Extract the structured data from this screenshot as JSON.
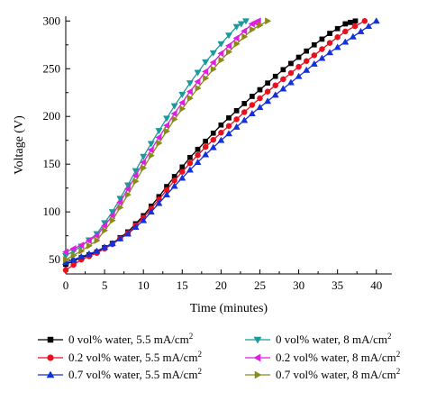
{
  "chart_data": {
    "type": "line",
    "title": "",
    "xlabel": "Time (minutes)",
    "ylabel": "Voltage (V)",
    "xlim": [
      0,
      42
    ],
    "ylim": [
      35,
      305
    ],
    "xticks": [
      0,
      5,
      10,
      15,
      20,
      25,
      30,
      35,
      40
    ],
    "yticks": [
      50,
      100,
      150,
      200,
      250,
      300
    ],
    "grid": false,
    "legend_placement": "bottom",
    "series": [
      {
        "name": "0 vol% water, 5.5 mA/cm",
        "name_sup": "2",
        "color": "#000000",
        "marker": "square",
        "x": [
          0,
          2,
          4,
          6,
          8,
          10,
          12,
          14,
          16,
          18,
          20,
          22,
          24,
          26,
          28,
          30,
          32,
          34,
          36,
          37.3
        ],
        "y": [
          45,
          52,
          58,
          67,
          79,
          96,
          116,
          137,
          157,
          174,
          191,
          206,
          221,
          235,
          249,
          262,
          275,
          287,
          297,
          300
        ]
      },
      {
        "name": "0.2 vol% water, 5.5 mA/cm",
        "name_sup": "2",
        "color": "#e8101e",
        "marker": "circle",
        "x": [
          0,
          2,
          4,
          6,
          8,
          10,
          12,
          14,
          16,
          18,
          20,
          22,
          24,
          26,
          28,
          30,
          32,
          34,
          36,
          38.5
        ],
        "y": [
          39,
          50,
          57,
          66,
          78,
          94,
          113,
          133,
          151,
          168,
          183,
          197,
          212,
          226,
          239,
          252,
          264,
          277,
          289,
          300
        ]
      },
      {
        "name": "0.7 vol% water, 5.5 mA/cm",
        "name_sup": "2",
        "color": "#1530d8",
        "marker": "triangle-up",
        "x": [
          0,
          2,
          4,
          6,
          8,
          10,
          12,
          14,
          16,
          18,
          20,
          22,
          24,
          26,
          28,
          30,
          32,
          34,
          36,
          38,
          40
        ],
        "y": [
          47,
          53,
          59,
          67,
          77,
          91,
          109,
          127,
          144,
          160,
          175,
          189,
          203,
          216,
          229,
          242,
          255,
          267,
          278,
          289,
          300
        ]
      },
      {
        "name": "0 vol% water, 8 mA/cm",
        "name_sup": "2",
        "color": "#1a9a9a",
        "marker": "triangle-down",
        "x": [
          0,
          2,
          4,
          6,
          8,
          10,
          12,
          14,
          16,
          18,
          20,
          22,
          23.2
        ],
        "y": [
          54,
          64,
          77,
          100,
          128,
          158,
          185,
          211,
          235,
          257,
          276,
          294,
          300
        ]
      },
      {
        "name": "0.2 vol% water, 8 mA/cm",
        "name_sup": "2",
        "color": "#e01ee0",
        "marker": "triangle-left",
        "x": [
          0,
          2,
          4,
          6,
          8,
          10,
          12,
          14,
          16,
          18,
          20,
          22,
          24,
          24.8
        ],
        "y": [
          58,
          65,
          75,
          96,
          124,
          152,
          178,
          203,
          226,
          247,
          266,
          282,
          297,
          300
        ]
      },
      {
        "name": "0.7 vol% water, 8 mA/cm",
        "name_sup": "2",
        "color": "#8a8a1a",
        "marker": "triangle-right",
        "x": [
          0,
          2,
          4,
          6,
          8,
          10,
          12,
          14,
          16,
          18,
          20,
          22,
          24,
          26
        ],
        "y": [
          50,
          59,
          70,
          91,
          118,
          146,
          172,
          197,
          219,
          240,
          259,
          276,
          291,
          300
        ]
      }
    ]
  }
}
